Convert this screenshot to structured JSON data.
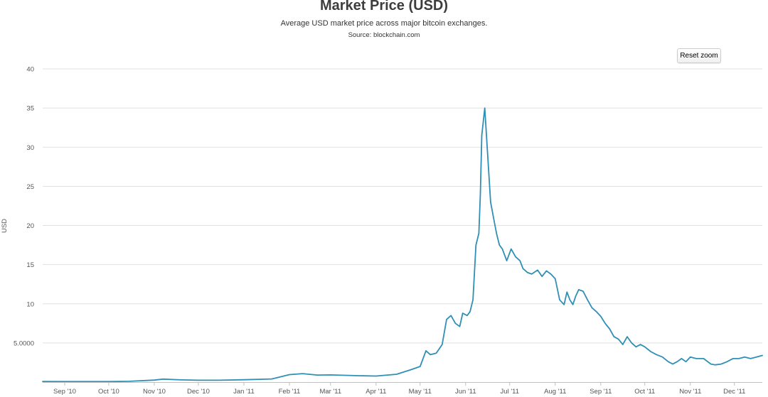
{
  "chart_data": {
    "type": "line",
    "title": "Market Price (USD)",
    "subtitle": "Average USD market price across major bitcoin exchanges.",
    "source": "Source: blockchain.com",
    "xlabel": "",
    "ylabel": "USD",
    "ylim": [
      0,
      40
    ],
    "xlim": [
      "2010-08-17",
      "2011-12-20"
    ],
    "grid": true,
    "legend": "none",
    "y_ticks": [
      {
        "value": 5,
        "label": "5.0000"
      },
      {
        "value": 10,
        "label": "10"
      },
      {
        "value": 15,
        "label": "15"
      },
      {
        "value": 20,
        "label": "20"
      },
      {
        "value": 25,
        "label": "25"
      },
      {
        "value": 30,
        "label": "30"
      },
      {
        "value": 35,
        "label": "35"
      },
      {
        "value": 40,
        "label": "40"
      }
    ],
    "x_ticks": [
      {
        "date": "2010-09-01",
        "label": "Sep '10"
      },
      {
        "date": "2010-10-01",
        "label": "Oct '10"
      },
      {
        "date": "2010-11-01",
        "label": "Nov '10"
      },
      {
        "date": "2010-12-01",
        "label": "Dec '10"
      },
      {
        "date": "2011-01-01",
        "label": "Jan '11"
      },
      {
        "date": "2011-02-01",
        "label": "Feb '11"
      },
      {
        "date": "2011-03-01",
        "label": "Mar '11"
      },
      {
        "date": "2011-04-01",
        "label": "Apr '11"
      },
      {
        "date": "2011-05-01",
        "label": "May '11"
      },
      {
        "date": "2011-06-01",
        "label": "Jun '11"
      },
      {
        "date": "2011-07-01",
        "label": "Jul '11"
      },
      {
        "date": "2011-08-01",
        "label": "Aug '11"
      },
      {
        "date": "2011-09-01",
        "label": "Sep '11"
      },
      {
        "date": "2011-10-01",
        "label": "Oct '11"
      },
      {
        "date": "2011-11-01",
        "label": "Nov '11"
      },
      {
        "date": "2011-12-01",
        "label": "Dec '11"
      }
    ],
    "series": [
      {
        "color": "#2f8fb5",
        "x": [
          "2010-08-17",
          "2010-08-31",
          "2010-09-14",
          "2010-10-01",
          "2010-10-15",
          "2010-11-01",
          "2010-11-07",
          "2010-11-20",
          "2010-12-01",
          "2010-12-15",
          "2011-01-01",
          "2011-01-20",
          "2011-02-01",
          "2011-02-10",
          "2011-02-20",
          "2011-03-01",
          "2011-03-20",
          "2011-04-01",
          "2011-04-15",
          "2011-04-25",
          "2011-05-01",
          "2011-05-05",
          "2011-05-08",
          "2011-05-12",
          "2011-05-16",
          "2011-05-19",
          "2011-05-22",
          "2011-05-25",
          "2011-05-28",
          "2011-05-30",
          "2011-06-02",
          "2011-06-04",
          "2011-06-06",
          "2011-06-08",
          "2011-06-10",
          "2011-06-11",
          "2011-06-12",
          "2011-06-14",
          "2011-06-16",
          "2011-06-18",
          "2011-06-20",
          "2011-06-22",
          "2011-06-24",
          "2011-06-26",
          "2011-06-29",
          "2011-07-02",
          "2011-07-05",
          "2011-07-08",
          "2011-07-10",
          "2011-07-13",
          "2011-07-16",
          "2011-07-20",
          "2011-07-23",
          "2011-07-26",
          "2011-07-29",
          "2011-08-01",
          "2011-08-04",
          "2011-08-07",
          "2011-08-09",
          "2011-08-11",
          "2011-08-13",
          "2011-08-15",
          "2011-08-17",
          "2011-08-20",
          "2011-08-23",
          "2011-08-26",
          "2011-08-29",
          "2011-09-01",
          "2011-09-04",
          "2011-09-07",
          "2011-09-10",
          "2011-09-13",
          "2011-09-16",
          "2011-09-19",
          "2011-09-22",
          "2011-09-25",
          "2011-09-28",
          "2011-10-01",
          "2011-10-05",
          "2011-10-09",
          "2011-10-13",
          "2011-10-17",
          "2011-10-20",
          "2011-10-23",
          "2011-10-26",
          "2011-10-29",
          "2011-11-01",
          "2011-11-05",
          "2011-11-10",
          "2011-11-15",
          "2011-11-18",
          "2011-11-22",
          "2011-11-26",
          "2011-11-30",
          "2011-12-04",
          "2011-12-08",
          "2011-12-12",
          "2011-12-16",
          "2011-12-20"
        ],
        "values": [
          0.07,
          0.06,
          0.06,
          0.06,
          0.1,
          0.25,
          0.38,
          0.28,
          0.24,
          0.24,
          0.3,
          0.4,
          0.95,
          1.08,
          0.9,
          0.92,
          0.82,
          0.77,
          1.0,
          1.6,
          2.0,
          4.0,
          3.5,
          3.7,
          4.8,
          8.0,
          8.5,
          7.5,
          7.1,
          8.8,
          8.5,
          9.0,
          10.5,
          17.5,
          19.0,
          24.0,
          31.5,
          35.0,
          29.0,
          23.0,
          21.0,
          19.0,
          17.5,
          17.0,
          15.5,
          17.0,
          16.0,
          15.5,
          14.5,
          14.0,
          13.8,
          14.3,
          13.5,
          14.2,
          13.8,
          13.2,
          10.5,
          9.9,
          11.5,
          10.5,
          9.9,
          11.0,
          11.8,
          11.6,
          10.5,
          9.5,
          9.0,
          8.4,
          7.5,
          6.8,
          5.8,
          5.5,
          4.8,
          5.8,
          5.0,
          4.5,
          4.8,
          4.5,
          3.9,
          3.5,
          3.2,
          2.6,
          2.3,
          2.6,
          3.0,
          2.6,
          3.2,
          3.0,
          3.0,
          2.3,
          2.2,
          2.3,
          2.6,
          3.0,
          3.0,
          3.2,
          3.0,
          3.2,
          3.4
        ]
      }
    ]
  },
  "controls": {
    "reset_zoom_label": "Reset zoom"
  }
}
